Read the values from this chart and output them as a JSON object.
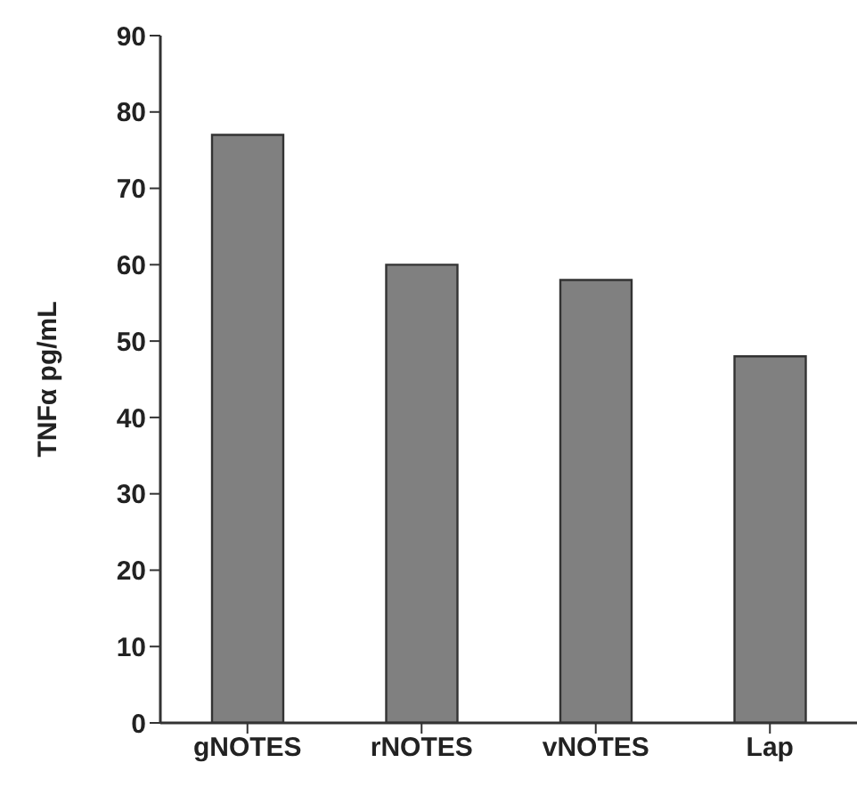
{
  "chart_data": {
    "type": "bar",
    "ylabel": "TNFα pg/mL",
    "categories": [
      "gNOTES",
      "rNOTES",
      "vNOTES",
      "Lap"
    ],
    "values": [
      77,
      60,
      58,
      48
    ],
    "color": "#808080",
    "ylim": [
      0,
      90
    ],
    "yticks": [
      0,
      10,
      20,
      30,
      40,
      50,
      60,
      70,
      80,
      90
    ],
    "grid": false,
    "legend": false
  }
}
